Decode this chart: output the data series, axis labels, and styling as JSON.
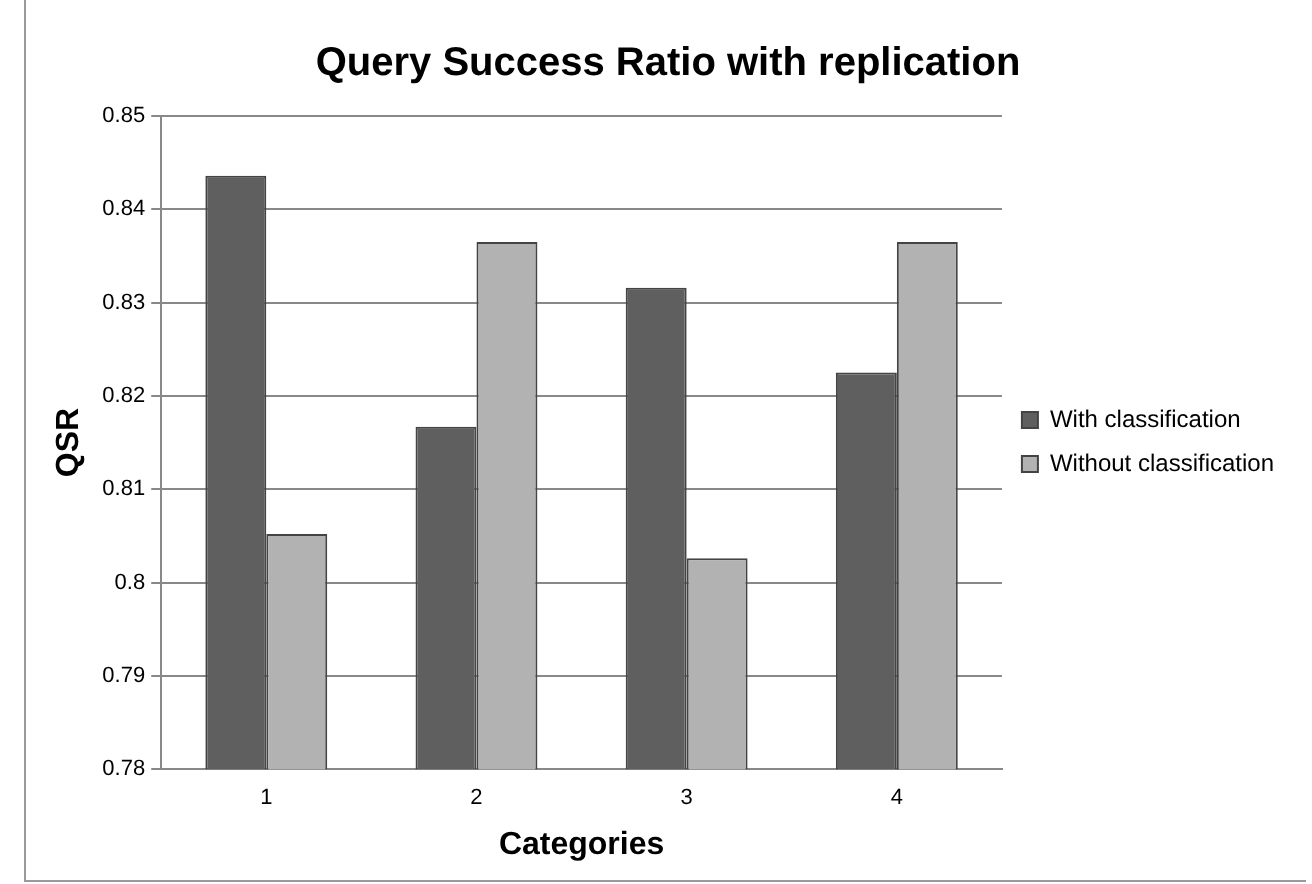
{
  "chart_data": {
    "type": "bar",
    "title": "Query Success Ratio with replication",
    "xlabel": "Categories",
    "ylabel": "QSR",
    "categories": [
      "1",
      "2",
      "3",
      "4"
    ],
    "series": [
      {
        "name": "With classification",
        "color": "#5f5f5f",
        "values": [
          0.8436,
          0.8167,
          0.8316,
          0.8225
        ]
      },
      {
        "name": "Without classification",
        "color": "#b2b2b2",
        "values": [
          0.8052,
          0.8365,
          0.8026,
          0.8365
        ]
      }
    ],
    "ylim": [
      0.78,
      0.85
    ],
    "yticks": [
      0.78,
      0.79,
      0.8,
      0.81,
      0.82,
      0.83,
      0.84,
      0.85
    ],
    "grid": "y",
    "legend": "right"
  }
}
